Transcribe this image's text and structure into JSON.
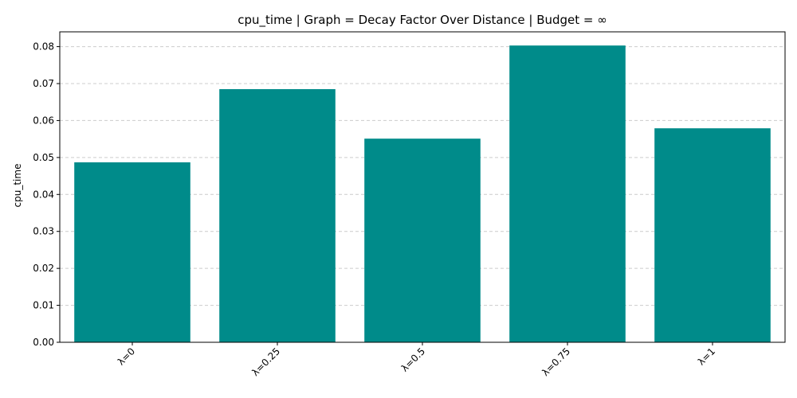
{
  "chart_data": {
    "type": "bar",
    "title": "cpu_time | Graph = Decay Factor Over Distance | Budget = ∞",
    "xlabel": "",
    "ylabel": "cpu_time",
    "categories": [
      "λ=0",
      "λ=0.25",
      "λ=0.5",
      "λ=0.75",
      "λ=1"
    ],
    "values": [
      0.0487,
      0.0685,
      0.0551,
      0.0803,
      0.0579
    ],
    "ylim": [
      0,
      0.084
    ],
    "yticks": [
      "0.00",
      "0.01",
      "0.02",
      "0.03",
      "0.04",
      "0.05",
      "0.06",
      "0.07",
      "0.08"
    ],
    "bar_color": "#008b8a",
    "grid": "y-axis dashed",
    "xtick_rotation_deg": 45
  }
}
